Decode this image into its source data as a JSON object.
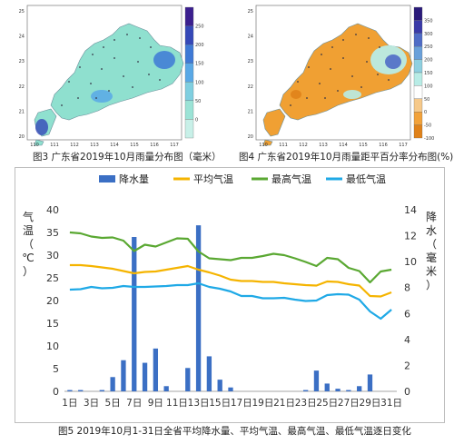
{
  "maps": [
    {
      "caption": "图3 广东省2019年10月雨量分布图（毫米）",
      "x_ticks": [
        "110",
        "111",
        "112",
        "113",
        "114",
        "115",
        "116",
        "117"
      ],
      "y_ticks": [
        "25",
        "24",
        "23",
        "22",
        "21",
        "20"
      ],
      "colorbar": {
        "ticks": [
          "250",
          "200",
          "150",
          "100",
          "50",
          "0"
        ],
        "colors": [
          "#3b1f8f",
          "#3548b8",
          "#3e79d6",
          "#59a8e6",
          "#7fcfe0",
          "#9be3d6",
          "#c8f0e8"
        ]
      },
      "land_color": "#8fe0cf",
      "accent_color": "#3f6fd1"
    },
    {
      "caption": "图4 广东省2019年10月雨量距平百分率分布图(%)",
      "x_ticks": [
        "110",
        "111",
        "112",
        "113",
        "114",
        "115",
        "116",
        "117"
      ],
      "y_ticks": [
        "25",
        "24",
        "23",
        "22",
        "21",
        "20"
      ],
      "colorbar": {
        "ticks": [
          "350",
          "300",
          "250",
          "200",
          "150",
          "100",
          "50",
          "0",
          "-50",
          "-100"
        ],
        "colors": [
          "#2a1a7a",
          "#3a3aa8",
          "#4f6cc6",
          "#6aa0da",
          "#8fd0e0",
          "#b8ece6",
          "#ffffff",
          "#f6c98a",
          "#f2a23a",
          "#e0821a"
        ]
      },
      "land_color": "#f0a033",
      "accent_color": "#3f6fd1"
    }
  ],
  "chart_caption": "图5  2019年10月1-31日全省平均降水量、平均气温、最高气温、最低气温逐日变化",
  "chart_data": {
    "type": "bar+line",
    "legend": [
      "降水量",
      "平均气温",
      "最高气温",
      "最低气温"
    ],
    "x": [
      "1日",
      "2日",
      "3日",
      "4日",
      "5日",
      "6日",
      "7日",
      "8日",
      "9日",
      "10日",
      "11日",
      "12日",
      "13日",
      "14日",
      "15日",
      "16日",
      "17日",
      "18日",
      "19日",
      "20日",
      "21日",
      "22日",
      "23日",
      "24日",
      "25日",
      "26日",
      "27日",
      "28日",
      "29日",
      "30日",
      "31日"
    ],
    "x_tick_labels": [
      "1日",
      "3日",
      "5日",
      "7日",
      "9日",
      "11日",
      "13日",
      "15日",
      "17日",
      "19日",
      "21日",
      "23日",
      "25日",
      "27日",
      "29日",
      "31日"
    ],
    "y_left": {
      "label": "气温（℃）",
      "range": [
        0,
        40
      ],
      "ticks": [
        "0",
        "5",
        "10",
        "15",
        "20",
        "25",
        "30",
        "35",
        "40"
      ]
    },
    "y_right": {
      "label": "降水（毫米）",
      "range": [
        0,
        14
      ],
      "ticks": [
        "0",
        "2",
        "4",
        "6",
        "8",
        "10",
        "12",
        "14"
      ]
    },
    "series": [
      {
        "name": "降水量",
        "type": "bar",
        "axis": "right",
        "color": "#3b6fc4",
        "values": [
          0.1,
          0.1,
          0.0,
          0.1,
          1.1,
          2.4,
          11.9,
          2.2,
          3.3,
          0.4,
          0.0,
          1.8,
          12.8,
          2.7,
          0.9,
          0.3,
          0.0,
          0.0,
          0.0,
          0.0,
          0.0,
          0.0,
          0.1,
          1.6,
          0.6,
          0.2,
          0.1,
          0.4,
          1.3,
          0.0,
          0.0
        ]
      },
      {
        "name": "平均气温",
        "type": "line",
        "axis": "left",
        "color": "#f5b400",
        "values": [
          27.8,
          27.8,
          27.6,
          27.3,
          27.0,
          26.5,
          26.0,
          26.3,
          26.4,
          26.8,
          27.2,
          27.6,
          26.8,
          26.2,
          25.5,
          24.6,
          24.3,
          24.3,
          24.1,
          24.1,
          23.8,
          23.6,
          23.4,
          23.3,
          24.2,
          24.1,
          23.6,
          23.3,
          21.0,
          20.9,
          21.8
        ]
      },
      {
        "name": "最高气温",
        "type": "line",
        "axis": "left",
        "color": "#5aa832",
        "values": [
          35.0,
          34.8,
          34.1,
          33.8,
          33.9,
          33.2,
          30.9,
          32.3,
          31.9,
          32.8,
          33.7,
          33.6,
          30.8,
          29.3,
          29.1,
          28.9,
          29.4,
          29.4,
          29.8,
          30.3,
          30.0,
          29.3,
          28.5,
          27.6,
          29.4,
          29.1,
          27.2,
          26.5,
          24.0,
          26.4,
          26.8
        ]
      },
      {
        "name": "最低气温",
        "type": "line",
        "axis": "left",
        "color": "#1fa9e6",
        "values": [
          22.4,
          22.5,
          23.0,
          22.7,
          22.8,
          23.2,
          23.0,
          23.0,
          23.1,
          23.2,
          23.4,
          23.4,
          23.8,
          23.0,
          22.6,
          22.0,
          21.0,
          21.0,
          20.5,
          20.5,
          20.6,
          20.2,
          19.9,
          20.0,
          21.2,
          21.4,
          21.3,
          20.2,
          17.6,
          16.0,
          18.0
        ]
      }
    ]
  }
}
